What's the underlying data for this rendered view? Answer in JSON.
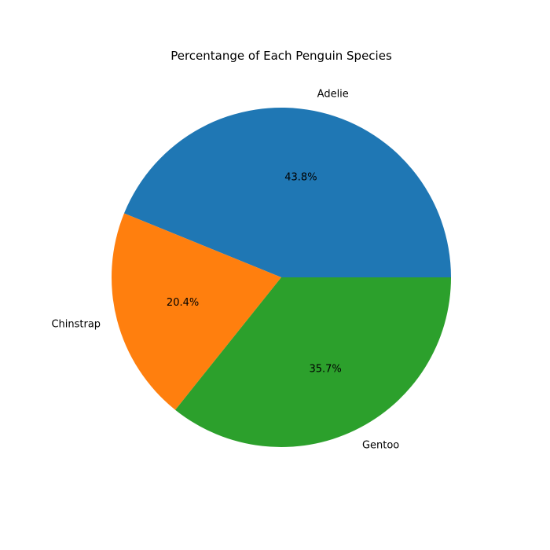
{
  "chart_data": {
    "type": "pie",
    "title": "Percentange of Each Penguin Species",
    "slices": [
      {
        "label": "Adelie",
        "value": 43.8,
        "pct_text": "43.8%",
        "color": "#1f77b4"
      },
      {
        "label": "Chinstrap",
        "value": 20.4,
        "pct_text": "20.4%",
        "color": "#ff7f0e"
      },
      {
        "label": "Gentoo",
        "value": 35.7,
        "pct_text": "35.7%",
        "color": "#2ca02c"
      }
    ],
    "start_angle_deg": 0,
    "direction": "counterclockwise",
    "legend": "none"
  }
}
